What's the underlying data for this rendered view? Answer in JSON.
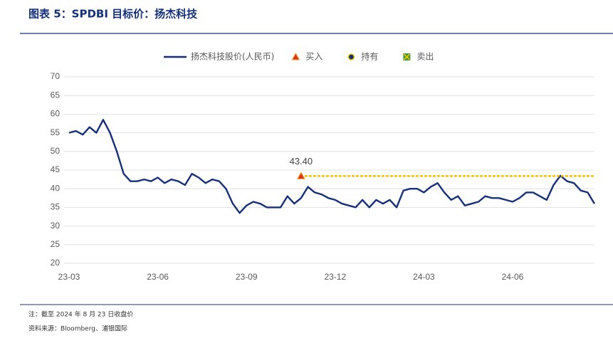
{
  "chart_data": {
    "type": "line",
    "title": "图表 5：SPDBI 目标价：扬杰科技",
    "categories": [
      "23-03",
      null,
      null,
      null,
      null,
      null,
      null,
      null,
      null,
      null,
      null,
      null,
      null,
      "23-06",
      null,
      null,
      null,
      null,
      null,
      null,
      null,
      null,
      null,
      null,
      null,
      null,
      "23-09",
      null,
      null,
      null,
      null,
      null,
      null,
      null,
      null,
      null,
      null,
      null,
      null,
      "23-12",
      null,
      null,
      null,
      null,
      null,
      null,
      null,
      null,
      null,
      null,
      null,
      null,
      "24-03",
      null,
      null,
      null,
      null,
      null,
      null,
      null,
      null,
      null,
      null,
      null,
      null,
      "24-06",
      null,
      null,
      null,
      null,
      null,
      null,
      null,
      null,
      null,
      null,
      null,
      null
    ],
    "series": [
      {
        "name": "扬杰科技股价(人民币)",
        "color": "#14307a",
        "values": [
          55,
          55.5,
          54.5,
          56.5,
          55,
          58.5,
          55,
          50,
          44,
          42,
          42,
          42.5,
          42,
          43,
          41.5,
          42.5,
          42,
          41,
          44,
          43,
          41.5,
          42.5,
          42,
          40,
          36,
          33.5,
          35.5,
          36.5,
          36,
          35,
          35,
          35,
          38,
          36,
          37.5,
          40.5,
          39,
          38.5,
          37.5,
          37,
          36,
          35.5,
          35,
          37,
          35,
          37,
          36,
          37,
          35,
          39.5,
          40,
          40,
          39,
          40.5,
          41.5,
          39,
          37,
          38,
          35.5,
          36,
          36.5,
          38,
          37.5,
          37.5,
          37,
          36.5,
          37.5,
          39,
          39,
          38,
          37,
          41,
          43.5,
          42,
          41.5,
          39.5,
          39,
          36
        ]
      }
    ],
    "markers": [
      {
        "name": "买入",
        "symbol": "triangle",
        "color": "#e0301e",
        "points": [
          {
            "index": 34,
            "value": 43.4,
            "value_label": "43.40"
          }
        ]
      },
      {
        "name": "持有",
        "symbol": "circle",
        "color": "#14307a",
        "points": []
      },
      {
        "name": "卖出",
        "symbol": "square",
        "color": "#3a9a3a",
        "points": []
      }
    ],
    "target_line_color": "#f0c000",
    "ylim": [
      20,
      70
    ],
    "yticks": [
      20,
      25,
      30,
      35,
      40,
      45,
      50,
      55,
      60,
      65,
      70
    ],
    "grid": true,
    "legend": "top",
    "notes": [
      "注：截至 2024 年 8 月 23 日收盘价",
      "资料来源：Bloomberg、浦银国际"
    ]
  }
}
